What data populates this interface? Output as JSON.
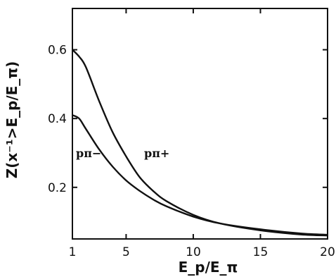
{
  "chart_data": {
    "type": "line",
    "title": "",
    "xlabel": "E_p/E_π",
    "ylabel": "Z(x⁻¹>E_p/E_π)",
    "xlim": [
      1,
      20
    ],
    "ylim": [
      0.05,
      0.72
    ],
    "grid": false,
    "x_ticks": [
      1,
      5,
      10,
      15,
      20
    ],
    "x_tick_labels": [
      "1",
      "5",
      "10",
      "15",
      "20"
    ],
    "y_ticks": [
      0.2,
      0.4,
      0.6
    ],
    "y_tick_labels": [
      "0.2",
      "0.4",
      "0.6"
    ],
    "series": [
      {
        "name": "pπ+",
        "x": [
          1,
          1.5,
          2,
          3,
          4,
          5,
          6,
          7,
          8,
          10,
          12,
          15,
          18,
          20
        ],
        "values": [
          0.6,
          0.58,
          0.55,
          0.45,
          0.36,
          0.29,
          0.23,
          0.19,
          0.16,
          0.12,
          0.095,
          0.075,
          0.063,
          0.06
        ]
      },
      {
        "name": "pπ−",
        "x": [
          1,
          1.5,
          2,
          3,
          4,
          5,
          6,
          7,
          8,
          10,
          12,
          15,
          18,
          20
        ],
        "values": [
          0.41,
          0.4,
          0.37,
          0.31,
          0.26,
          0.22,
          0.19,
          0.165,
          0.145,
          0.115,
          0.095,
          0.078,
          0.066,
          0.062
        ]
      }
    ]
  }
}
